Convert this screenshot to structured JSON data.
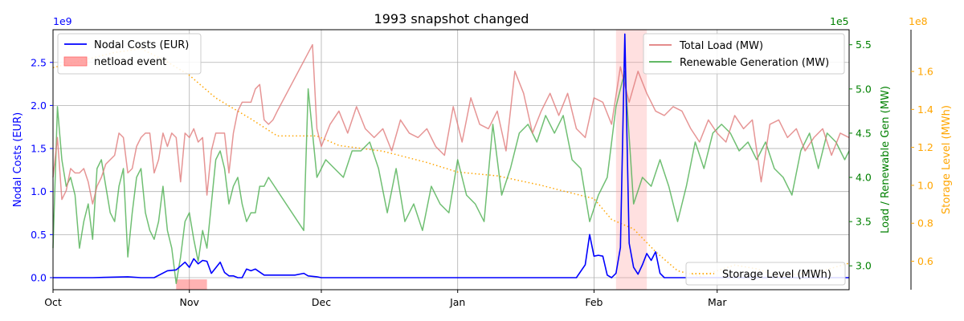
{
  "chart_data": {
    "type": "line",
    "title": "1993 snapshot changed",
    "grid": true,
    "x_range": [
      "1993-10-01",
      "1994-03-31"
    ],
    "x_ticks": [
      {
        "label": "Oct",
        "date": "1993-10-01"
      },
      {
        "label": "Nov",
        "date": "1993-11-01"
      },
      {
        "label": "Dec",
        "date": "1993-12-01"
      },
      {
        "label": "Jan",
        "date": "1994-01-01"
      },
      {
        "label": "Feb",
        "date": "1994-02-01"
      },
      {
        "label": "Mar",
        "date": "1994-03-01"
      }
    ],
    "axes": {
      "left": {
        "label": "Nodal Costs (EUR)",
        "color": "#0000ff",
        "offset_label": "1e9",
        "ylim": [
          -0.14,
          2.88
        ],
        "ticks": [
          "0.0",
          "0.5",
          "1.0",
          "1.5",
          "2.0",
          "2.5"
        ],
        "tick_values": [
          0,
          0.5,
          1,
          1.5,
          2,
          2.5
        ]
      },
      "right": {
        "label": "Load / Renewable Gen (MW)",
        "color": "#008000",
        "offset_label": "1e5",
        "ylim": [
          2.73,
          5.67
        ],
        "ticks": [
          "3.0",
          "3.5",
          "4.0",
          "4.5",
          "5.0",
          "5.5"
        ],
        "tick_values": [
          3,
          3.5,
          4,
          4.5,
          5,
          5.5
        ]
      },
      "far_right": {
        "label": "Storage Level (MWh)",
        "color": "#ffa500",
        "offset_label": "1e8",
        "ylim": [
          0.45,
          1.82
        ],
        "ticks": [
          "0.6",
          "0.8",
          "1.0",
          "1.2",
          "1.4",
          "1.6"
        ],
        "tick_values": [
          0.6,
          0.8,
          1.0,
          1.2,
          1.4,
          1.6
        ]
      }
    },
    "shaded_events": [
      {
        "start": "1993-10-29",
        "end": "1993-11-05",
        "color": "#ff0000",
        "alpha": 0.3,
        "axis": "left",
        "band": [
          -0.14,
          -0.02
        ]
      },
      {
        "start": "1994-02-06",
        "end": "1994-02-13",
        "color": "#ff9999",
        "alpha": 0.3,
        "axis": "full"
      }
    ],
    "legends": [
      {
        "position": "upper-left",
        "entries": [
          {
            "label": "Nodal Costs (EUR)",
            "kind": "line",
            "color": "#0000ff"
          },
          {
            "label": "netload event",
            "kind": "patch",
            "color": "#ff8080"
          }
        ]
      },
      {
        "position": "upper-right",
        "entries": [
          {
            "label": "Total Load (MW)",
            "kind": "line",
            "color": "#e07b7b"
          },
          {
            "label": "Renewable Generation (MW)",
            "kind": "line",
            "color": "#4caf50"
          }
        ]
      },
      {
        "position": "lower-right",
        "entries": [
          {
            "label": "Storage Level (MWh)",
            "kind": "dotted",
            "color": "#ffa500"
          }
        ]
      }
    ],
    "series": [
      {
        "name": "Nodal Costs (EUR)",
        "axis": "left",
        "color": "#0000ff",
        "style": "solid",
        "width": 1.6,
        "x": [
          "1993-10-01",
          "1993-10-10",
          "1993-10-18",
          "1993-10-21",
          "1993-10-24",
          "1993-10-27",
          "1993-10-29",
          "1993-10-31",
          "1993-11-01",
          "1993-11-02",
          "1993-11-03",
          "1993-11-04",
          "1993-11-05",
          "1993-11-06",
          "1993-11-08",
          "1993-11-09",
          "1993-11-10",
          "1993-11-11",
          "1993-11-12",
          "1993-11-13",
          "1993-11-14",
          "1993-11-15",
          "1993-11-16",
          "1993-11-18",
          "1993-11-19",
          "1993-11-20",
          "1993-11-21",
          "1993-11-25",
          "1993-11-27",
          "1993-11-28",
          "1993-11-30",
          "1993-12-01",
          "1993-12-10",
          "1993-12-20",
          "1994-01-01",
          "1994-01-15",
          "1994-01-25",
          "1994-01-28",
          "1994-01-30",
          "1994-01-31",
          "1994-02-01",
          "1994-02-02",
          "1994-02-03",
          "1994-02-04",
          "1994-02-05",
          "1994-02-06",
          "1994-02-07",
          "1994-02-08",
          "1994-02-09",
          "1994-02-10",
          "1994-02-11",
          "1994-02-12",
          "1994-02-13",
          "1994-02-14",
          "1994-02-15",
          "1994-02-16",
          "1994-02-17",
          "1994-02-18",
          "1994-02-20",
          "1994-03-01",
          "1994-03-31"
        ],
        "values": [
          0.0,
          0.0,
          0.01,
          0.0,
          0.0,
          0.08,
          0.09,
          0.18,
          0.12,
          0.22,
          0.16,
          0.2,
          0.19,
          0.05,
          0.18,
          0.06,
          0.02,
          0.02,
          0.0,
          0.0,
          0.1,
          0.08,
          0.1,
          0.03,
          0.03,
          0.03,
          0.03,
          0.03,
          0.05,
          0.02,
          0.01,
          0.0,
          0.0,
          0.0,
          0.0,
          0.0,
          0.0,
          0.0,
          0.15,
          0.5,
          0.25,
          0.26,
          0.25,
          0.03,
          0.0,
          0.05,
          0.35,
          2.83,
          0.4,
          0.12,
          0.04,
          0.15,
          0.28,
          0.2,
          0.3,
          0.05,
          0.0,
          0.0,
          0.0,
          0.0,
          0.0
        ]
      },
      {
        "name": "Total Load (MW)",
        "axis": "right",
        "color": "#e07b7b",
        "style": "solid",
        "width": 1.5,
        "x": [
          "1993-10-01",
          "1993-10-02",
          "1993-10-03",
          "1993-10-04",
          "1993-10-05",
          "1993-10-06",
          "1993-10-07",
          "1993-10-08",
          "1993-10-09",
          "1993-10-10",
          "1993-10-11",
          "1993-10-12",
          "1993-10-13",
          "1993-10-14",
          "1993-10-15",
          "1993-10-16",
          "1993-10-17",
          "1993-10-18",
          "1993-10-19",
          "1993-10-20",
          "1993-10-21",
          "1993-10-22",
          "1993-10-23",
          "1993-10-24",
          "1993-10-25",
          "1993-10-26",
          "1993-10-27",
          "1993-10-28",
          "1993-10-29",
          "1993-10-30",
          "1993-10-31",
          "1993-11-01",
          "1993-11-02",
          "1993-11-03",
          "1993-11-04",
          "1993-11-05",
          "1993-11-06",
          "1993-11-07",
          "1993-11-08",
          "1993-11-09",
          "1993-11-10",
          "1993-11-11",
          "1993-11-12",
          "1993-11-13",
          "1993-11-14",
          "1993-11-15",
          "1993-11-16",
          "1993-11-17",
          "1993-11-18",
          "1993-11-19",
          "1993-11-20",
          "1993-11-21",
          "1993-11-29",
          "1993-11-30",
          "1993-12-01",
          "1993-12-03",
          "1993-12-05",
          "1993-12-07",
          "1993-12-09",
          "1993-12-11",
          "1993-12-13",
          "1993-12-15",
          "1993-12-17",
          "1993-12-19",
          "1993-12-21",
          "1993-12-23",
          "1993-12-25",
          "1993-12-27",
          "1993-12-29",
          "1993-12-31",
          "1994-01-02",
          "1994-01-04",
          "1994-01-06",
          "1994-01-08",
          "1994-01-10",
          "1994-01-12",
          "1994-01-14",
          "1994-01-16",
          "1994-01-18",
          "1994-01-20",
          "1994-01-22",
          "1994-01-24",
          "1994-01-26",
          "1994-01-28",
          "1994-01-30",
          "1994-02-01",
          "1994-02-03",
          "1994-02-05",
          "1994-02-07",
          "1994-02-09",
          "1994-02-11",
          "1994-02-13",
          "1994-02-15",
          "1994-02-17",
          "1994-02-19",
          "1994-02-21",
          "1994-02-23",
          "1994-02-25",
          "1994-02-27",
          "1994-03-01",
          "1994-03-03",
          "1994-03-05",
          "1994-03-07",
          "1994-03-09",
          "1994-03-11",
          "1994-03-13",
          "1994-03-15",
          "1994-03-17",
          "1994-03-19",
          "1994-03-21",
          "1994-03-23",
          "1994-03-25",
          "1994-03-27",
          "1994-03-29",
          "1994-03-31"
        ],
        "values": [
          4.0,
          4.45,
          3.75,
          3.85,
          4.1,
          4.05,
          4.05,
          4.1,
          3.95,
          3.7,
          3.9,
          4.0,
          4.15,
          4.2,
          4.25,
          4.5,
          4.45,
          4.05,
          4.1,
          4.35,
          4.45,
          4.5,
          4.5,
          4.05,
          4.2,
          4.5,
          4.35,
          4.5,
          4.45,
          3.95,
          4.5,
          4.45,
          4.55,
          4.4,
          4.45,
          3.8,
          4.3,
          4.5,
          4.5,
          4.5,
          4.05,
          4.5,
          4.75,
          4.85,
          4.85,
          4.85,
          5.0,
          5.05,
          4.65,
          4.6,
          4.65,
          4.75,
          5.5,
          4.55,
          4.35,
          4.6,
          4.75,
          4.5,
          4.8,
          4.55,
          4.45,
          4.55,
          4.3,
          4.65,
          4.5,
          4.45,
          4.55,
          4.35,
          4.25,
          4.8,
          4.4,
          4.9,
          4.6,
          4.55,
          4.75,
          4.3,
          5.2,
          4.95,
          4.5,
          4.75,
          4.95,
          4.7,
          4.95,
          4.55,
          4.45,
          4.9,
          4.85,
          4.6,
          5.25,
          4.85,
          5.2,
          4.95,
          4.75,
          4.7,
          4.8,
          4.75,
          4.55,
          4.4,
          4.65,
          4.5,
          4.4,
          4.7,
          4.55,
          4.65,
          3.95,
          4.6,
          4.65,
          4.45,
          4.55,
          4.3,
          4.45,
          4.55,
          4.25,
          4.5,
          4.45
        ]
      },
      {
        "name": "Renewable Generation (MW)",
        "axis": "right",
        "color": "#4caf50",
        "style": "solid",
        "width": 1.5,
        "x": [
          "1993-10-01",
          "1993-10-02",
          "1993-10-03",
          "1993-10-04",
          "1993-10-05",
          "1993-10-06",
          "1993-10-07",
          "1993-10-08",
          "1993-10-09",
          "1993-10-10",
          "1993-10-11",
          "1993-10-12",
          "1993-10-13",
          "1993-10-14",
          "1993-10-15",
          "1993-10-16",
          "1993-10-17",
          "1993-10-18",
          "1993-10-19",
          "1993-10-20",
          "1993-10-21",
          "1993-10-22",
          "1993-10-23",
          "1993-10-24",
          "1993-10-25",
          "1993-10-26",
          "1993-10-27",
          "1993-10-28",
          "1993-10-29",
          "1993-10-30",
          "1993-10-31",
          "1993-11-01",
          "1993-11-02",
          "1993-11-03",
          "1993-11-04",
          "1993-11-05",
          "1993-11-06",
          "1993-11-07",
          "1993-11-08",
          "1993-11-09",
          "1993-11-10",
          "1993-11-11",
          "1993-11-12",
          "1993-11-13",
          "1993-11-14",
          "1993-11-15",
          "1993-11-16",
          "1993-11-17",
          "1993-11-18",
          "1993-11-19",
          "1993-11-27",
          "1993-11-28",
          "1993-11-30",
          "1993-12-02",
          "1993-12-04",
          "1993-12-06",
          "1993-12-08",
          "1993-12-10",
          "1993-12-12",
          "1993-12-14",
          "1993-12-16",
          "1993-12-18",
          "1993-12-20",
          "1993-12-22",
          "1993-12-24",
          "1993-12-26",
          "1993-12-28",
          "1993-12-30",
          "1994-01-01",
          "1994-01-03",
          "1994-01-05",
          "1994-01-07",
          "1994-01-09",
          "1994-01-11",
          "1994-01-13",
          "1994-01-15",
          "1994-01-17",
          "1994-01-19",
          "1994-01-21",
          "1994-01-23",
          "1994-01-25",
          "1994-01-27",
          "1994-01-29",
          "1994-01-31",
          "1994-02-02",
          "1994-02-04",
          "1994-02-06",
          "1994-02-08",
          "1994-02-10",
          "1994-02-12",
          "1994-02-14",
          "1994-02-16",
          "1994-02-18",
          "1994-02-20",
          "1994-02-22",
          "1994-02-24",
          "1994-02-26",
          "1994-02-28",
          "1994-03-02",
          "1994-03-04",
          "1994-03-06",
          "1994-03-08",
          "1994-03-10",
          "1994-03-12",
          "1994-03-14",
          "1994-03-16",
          "1994-03-18",
          "1994-03-20",
          "1994-03-22",
          "1994-03-24",
          "1994-03-26",
          "1994-03-28",
          "1994-03-30",
          "1994-03-31"
        ],
        "values": [
          3.2,
          4.8,
          4.2,
          3.9,
          4.0,
          3.8,
          3.2,
          3.5,
          3.7,
          3.3,
          4.1,
          4.2,
          3.9,
          3.6,
          3.5,
          3.9,
          4.1,
          3.1,
          3.6,
          4.0,
          4.1,
          3.6,
          3.4,
          3.3,
          3.5,
          3.9,
          3.4,
          3.2,
          2.8,
          3.1,
          3.5,
          3.6,
          3.3,
          3.05,
          3.4,
          3.2,
          3.7,
          4.2,
          4.3,
          4.1,
          3.7,
          3.9,
          4.0,
          3.7,
          3.5,
          3.6,
          3.6,
          3.9,
          3.9,
          4.0,
          3.4,
          5.0,
          4.0,
          4.2,
          4.1,
          4.0,
          4.3,
          4.3,
          4.4,
          4.1,
          3.6,
          4.1,
          3.5,
          3.7,
          3.4,
          3.9,
          3.7,
          3.6,
          4.2,
          3.8,
          3.7,
          3.5,
          4.6,
          3.8,
          4.1,
          4.5,
          4.6,
          4.4,
          4.7,
          4.5,
          4.7,
          4.2,
          4.1,
          3.5,
          3.8,
          4.0,
          4.8,
          5.2,
          3.7,
          4.0,
          3.9,
          4.2,
          3.9,
          3.5,
          3.9,
          4.4,
          4.1,
          4.5,
          4.6,
          4.5,
          4.3,
          4.4,
          4.2,
          4.4,
          4.1,
          4.0,
          3.8,
          4.3,
          4.5,
          4.1,
          4.5,
          4.4,
          4.2,
          4.3
        ]
      },
      {
        "name": "Storage Level (MWh)",
        "axis": "far_right",
        "color": "#ffa500",
        "style": "dotted",
        "width": 1.5,
        "x": [
          "1993-10-01",
          "1993-10-15",
          "1993-10-21",
          "1993-10-27",
          "1993-11-01",
          "1993-11-07",
          "1993-11-15",
          "1993-11-21",
          "1993-11-30",
          "1993-12-05",
          "1993-12-15",
          "1993-12-25",
          "1994-01-01",
          "1994-01-10",
          "1994-01-20",
          "1994-01-25",
          "1994-02-01",
          "1994-02-05",
          "1994-02-10",
          "1994-02-15",
          "1994-02-20",
          "1994-02-25",
          "1994-03-01",
          "1994-03-05",
          "1994-03-10",
          "1994-03-15",
          "1994-03-25",
          "1994-03-31"
        ],
        "values": [
          1.62,
          1.7,
          1.72,
          1.65,
          1.58,
          1.46,
          1.35,
          1.26,
          1.26,
          1.21,
          1.18,
          1.12,
          1.07,
          1.05,
          1.0,
          0.97,
          0.93,
          0.82,
          0.77,
          0.65,
          0.55,
          0.52,
          0.55,
          0.58,
          0.56,
          0.52,
          0.55,
          0.59
        ]
      }
    ]
  }
}
